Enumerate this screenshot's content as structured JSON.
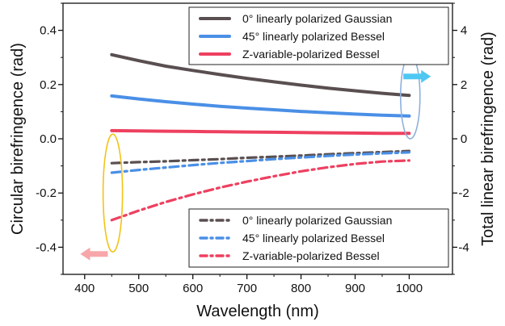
{
  "chart_data": {
    "type": "line",
    "xlabel": "Wavelength (nm)",
    "ylabel": "Circular birefringence (rad)",
    "y2label": "Total linear birefringence (rad)",
    "xlim": [
      360,
      1080
    ],
    "ylim": [
      -0.5,
      0.5
    ],
    "y2lim": [
      -5,
      5
    ],
    "xticks": [
      400,
      500,
      600,
      700,
      800,
      900,
      1000
    ],
    "yticks": [
      -0.4,
      -0.2,
      0.0,
      0.2,
      0.4
    ],
    "y2ticks": [
      -4,
      -2,
      0,
      2,
      4
    ],
    "x": [
      450,
      500,
      550,
      600,
      650,
      700,
      750,
      800,
      850,
      900,
      950,
      1000
    ],
    "series": [
      {
        "name": "0° linearly polarized Gaussian",
        "axis": "right",
        "style": "solid",
        "color": "#5a4f50",
        "values": [
          3.1,
          2.88,
          2.68,
          2.52,
          2.37,
          2.23,
          2.1,
          1.98,
          1.87,
          1.77,
          1.68,
          1.6
        ]
      },
      {
        "name": "45° linearly polarized Bessel",
        "axis": "right",
        "style": "solid",
        "color": "#4a8fe6",
        "values": [
          1.58,
          1.47,
          1.37,
          1.28,
          1.2,
          1.13,
          1.07,
          1.01,
          0.96,
          0.91,
          0.87,
          0.84
        ]
      },
      {
        "name": "Z-variable-polarized Bessel",
        "axis": "right",
        "style": "solid",
        "color": "#ee4060",
        "values": [
          0.3,
          0.29,
          0.28,
          0.27,
          0.26,
          0.25,
          0.24,
          0.23,
          0.22,
          0.21,
          0.2,
          0.2
        ]
      },
      {
        "name": "0° linearly polarized Gaussian",
        "axis": "left",
        "style": "dashdot",
        "color": "#5a4f50",
        "values": [
          -0.09,
          -0.086,
          -0.083,
          -0.079,
          -0.075,
          -0.07,
          -0.066,
          -0.062,
          -0.057,
          -0.053,
          -0.049,
          -0.045
        ]
      },
      {
        "name": "45° linearly polarized Bessel",
        "axis": "left",
        "style": "dashdot",
        "color": "#4a8fe6",
        "values": [
          -0.125,
          -0.115,
          -0.106,
          -0.097,
          -0.089,
          -0.082,
          -0.075,
          -0.069,
          -0.063,
          -0.058,
          -0.054,
          -0.05
        ]
      },
      {
        "name": "Z-variable-polarized Bessel",
        "axis": "left",
        "style": "dashdot",
        "color": "#ee4060",
        "values": [
          -0.3,
          -0.265,
          -0.233,
          -0.205,
          -0.18,
          -0.158,
          -0.138,
          -0.12,
          -0.105,
          -0.093,
          -0.084,
          -0.08
        ]
      }
    ],
    "legends": [
      {
        "position": "top-right",
        "series_indices": [
          0,
          1,
          2
        ]
      },
      {
        "position": "bottom-right",
        "series_indices": [
          3,
          4,
          5
        ]
      }
    ],
    "annotations": [
      {
        "shape": "ellipse",
        "color": "#f2c318",
        "encloses": "left-axis series start near 450 nm"
      },
      {
        "shape": "arrow",
        "direction": "left",
        "color": "#f7a6aa",
        "meaning": "left-axis series"
      },
      {
        "shape": "ellipse",
        "color": "#8fb0dc",
        "encloses": "right-axis series end near 1000 nm"
      },
      {
        "shape": "arrow",
        "direction": "right",
        "color": "#4ec8f2",
        "meaning": "right-axis series"
      }
    ],
    "grid": false
  }
}
